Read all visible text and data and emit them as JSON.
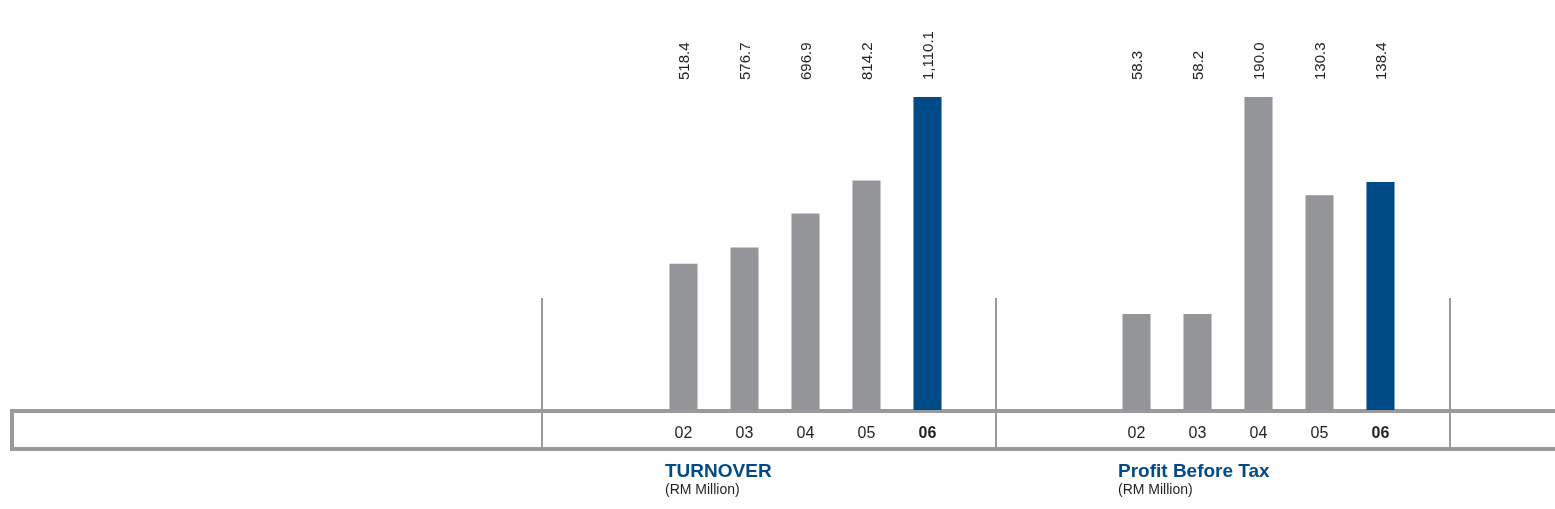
{
  "chart_data": [
    {
      "type": "bar",
      "title": "TURNOVER",
      "subtitle": "(RM Million)",
      "categories": [
        "02",
        "03",
        "04",
        "05",
        "06"
      ],
      "values": [
        518.4,
        576.7,
        696.9,
        814.2,
        1110.1
      ],
      "value_labels": [
        "518.4",
        "576.7",
        "696.9",
        "814.2",
        "1,110.1"
      ],
      "colors": [
        "#939598",
        "#939598",
        "#939598",
        "#939598",
        "#004a87"
      ]
    },
    {
      "type": "bar",
      "title": "Profit Before Tax",
      "subtitle": "(RM Million)",
      "categories": [
        "02",
        "03",
        "04",
        "05",
        "06"
      ],
      "values": [
        58.3,
        58.2,
        190.0,
        130.3,
        138.4
      ],
      "value_labels": [
        "58.3",
        "58.2",
        "190.0",
        "130.3",
        "138.4"
      ],
      "colors": [
        "#939598",
        "#939598",
        "#939598",
        "#939598",
        "#004a87"
      ]
    }
  ]
}
